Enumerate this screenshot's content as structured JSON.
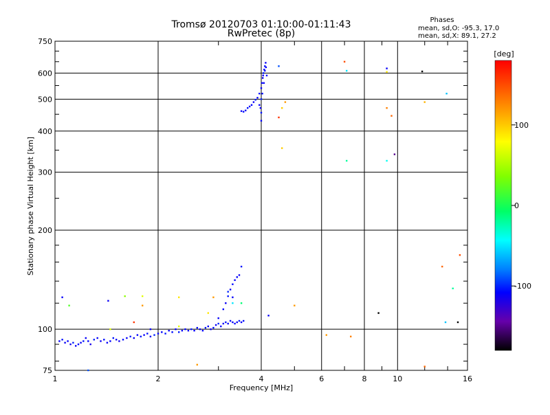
{
  "chart_data": {
    "type": "scatter",
    "title": "Tromsø 20120703 01:10:00-01:11:43",
    "subtitle": "RwPretec (8p)",
    "xlabel": "Frequency [MHz]",
    "ylabel": "Stationary phase Virtual Height [km]",
    "x_scale": "log",
    "y_scale": "log",
    "xlim": [
      1,
      16
    ],
    "ylim": [
      75,
      750
    ],
    "x_ticks": [
      1,
      2,
      4,
      6,
      8,
      10,
      16
    ],
    "x_tick_labels": [
      "1",
      "2",
      "4",
      "6",
      "8",
      "10",
      "16"
    ],
    "y_ticks": [
      75,
      100,
      200,
      300,
      400,
      500,
      600,
      750
    ],
    "y_tick_labels": [
      "75",
      "100",
      "200",
      "300",
      "400",
      "500",
      "600",
      "750"
    ],
    "grid": true,
    "phases_legend": {
      "heading": "Phases",
      "line_o": "mean, sd,O: -95.3, 17.0",
      "line_x": "mean, sd,X:  89.1, 27.2"
    },
    "colorbar": {
      "label": "[deg]",
      "min": -180,
      "max": 180,
      "tick_values": [
        100,
        0,
        -100
      ],
      "tick_labels": [
        "100",
        "0",
        "-100"
      ]
    },
    "series": [
      {
        "points": [
          [
            1.03,
            92,
            -110
          ],
          [
            1.05,
            93,
            -105
          ],
          [
            1.07,
            91,
            -112
          ],
          [
            1.09,
            92,
            -108
          ],
          [
            1.11,
            90,
            -115
          ],
          [
            1.13,
            91,
            -100
          ],
          [
            1.15,
            89,
            -110
          ],
          [
            1.17,
            90,
            -106
          ],
          [
            1.19,
            91,
            -112
          ],
          [
            1.21,
            92,
            -104
          ],
          [
            1.23,
            94,
            -110
          ],
          [
            1.25,
            92,
            -108
          ],
          [
            1.27,
            90,
            -116
          ],
          [
            1.3,
            93,
            -102
          ],
          [
            1.33,
            94,
            -110
          ],
          [
            1.36,
            92,
            -112
          ],
          [
            1.39,
            93,
            -105
          ],
          [
            1.42,
            91,
            -110
          ],
          [
            1.45,
            92,
            -108
          ],
          [
            1.48,
            94,
            -104
          ],
          [
            1.51,
            93,
            -110
          ],
          [
            1.54,
            92,
            -114
          ],
          [
            1.58,
            93,
            -106
          ],
          [
            1.62,
            94,
            -110
          ],
          [
            1.66,
            95,
            -102
          ],
          [
            1.7,
            94,
            -112
          ],
          [
            1.74,
            96,
            -108
          ],
          [
            1.78,
            95,
            -104
          ],
          [
            1.82,
            96,
            -110
          ],
          [
            1.86,
            97,
            -106
          ],
          [
            1.9,
            95,
            -112
          ],
          [
            1.95,
            96,
            -100
          ],
          [
            2.0,
            97,
            -110
          ],
          [
            2.05,
            98,
            -108
          ],
          [
            2.1,
            97,
            -104
          ],
          [
            2.15,
            99,
            -112
          ],
          [
            2.2,
            98,
            -106
          ],
          [
            2.25,
            100,
            -110
          ],
          [
            2.3,
            98,
            -102
          ],
          [
            2.35,
            99,
            -110
          ],
          [
            2.4,
            100,
            -108
          ],
          [
            2.45,
            99,
            -112
          ],
          [
            2.5,
            100,
            -104
          ],
          [
            2.55,
            99,
            -110
          ],
          [
            2.6,
            101,
            -106
          ],
          [
            2.65,
            100,
            -110
          ],
          [
            2.7,
            99,
            -108
          ],
          [
            2.75,
            101,
            -104
          ],
          [
            2.8,
            102,
            -110
          ],
          [
            2.85,
            100,
            -112
          ],
          [
            2.9,
            101,
            -106
          ],
          [
            2.95,
            103,
            -110
          ],
          [
            3.0,
            104,
            -100
          ],
          [
            3.05,
            102,
            -108
          ],
          [
            3.1,
            104,
            -112
          ],
          [
            3.15,
            105,
            -104
          ],
          [
            3.2,
            104,
            -110
          ],
          [
            3.25,
            106,
            -106
          ],
          [
            3.3,
            105,
            -110
          ],
          [
            3.35,
            104,
            -108
          ],
          [
            3.4,
            105,
            -112
          ],
          [
            3.45,
            106,
            -104
          ],
          [
            3.5,
            105,
            -110
          ],
          [
            3.55,
            106,
            -106
          ],
          [
            3.0,
            108,
            -110
          ],
          [
            3.1,
            115,
            -108
          ],
          [
            3.15,
            120,
            -112
          ],
          [
            3.2,
            126,
            -104
          ],
          [
            3.25,
            132,
            -110
          ],
          [
            3.3,
            137,
            -106
          ],
          [
            3.35,
            141,
            -110
          ],
          [
            3.4,
            144,
            -108
          ],
          [
            3.45,
            146,
            -112
          ],
          [
            3.5,
            155,
            -104
          ],
          [
            3.3,
            125,
            -110
          ],
          [
            3.2,
            130,
            -100
          ],
          [
            3.5,
            460,
            -110
          ],
          [
            3.55,
            458,
            -106
          ],
          [
            3.6,
            462,
            -112
          ],
          [
            3.65,
            470,
            -104
          ],
          [
            3.7,
            475,
            -110
          ],
          [
            3.75,
            480,
            -108
          ],
          [
            3.8,
            490,
            -112
          ],
          [
            3.85,
            498,
            -104
          ],
          [
            3.9,
            505,
            -110
          ],
          [
            3.95,
            520,
            -106
          ],
          [
            4.0,
            540,
            -110
          ],
          [
            4.02,
            560,
            -108
          ],
          [
            4.04,
            580,
            -112
          ],
          [
            4.06,
            600,
            -104
          ],
          [
            4.08,
            615,
            -110
          ],
          [
            4.1,
            630,
            -106
          ],
          [
            4.12,
            645,
            -110
          ],
          [
            4.0,
            500,
            -100
          ],
          [
            3.98,
            470,
            -112
          ],
          [
            4.03,
            520,
            -104
          ],
          [
            4.07,
            560,
            -110
          ],
          [
            4.0,
            430,
            -108
          ],
          [
            4.05,
            590,
            -112
          ],
          [
            4.1,
            610,
            -104
          ],
          [
            4.13,
            625,
            -110
          ],
          [
            4.15,
            590,
            -106
          ],
          [
            3.95,
            480,
            -110
          ],
          [
            4.0,
            455,
            -104
          ],
          [
            1.05,
            125,
            -110
          ],
          [
            1.1,
            118,
            20
          ],
          [
            1.25,
            75,
            -90
          ],
          [
            1.43,
            122,
            -112
          ],
          [
            1.45,
            100,
            70
          ],
          [
            1.6,
            126,
            40
          ],
          [
            1.7,
            105,
            160
          ],
          [
            1.8,
            118,
            120
          ],
          [
            1.8,
            126,
            70
          ],
          [
            1.9,
            100,
            -110
          ],
          [
            2.3,
            102,
            70
          ],
          [
            2.3,
            125,
            90
          ],
          [
            2.6,
            78,
            120
          ],
          [
            2.8,
            112,
            90
          ],
          [
            2.9,
            125,
            120
          ],
          [
            3.3,
            120,
            -50
          ],
          [
            3.5,
            120,
            -10
          ],
          [
            4.2,
            110,
            -110
          ],
          [
            4.5,
            630,
            -90
          ],
          [
            4.5,
            440,
            160
          ],
          [
            4.6,
            470,
            100
          ],
          [
            4.7,
            490,
            120
          ],
          [
            4.6,
            355,
            100
          ],
          [
            5.0,
            118,
            120
          ],
          [
            6.2,
            96,
            120
          ],
          [
            7.0,
            650,
            150
          ],
          [
            7.1,
            610,
            -50
          ],
          [
            7.1,
            325,
            -20
          ],
          [
            7.3,
            95,
            130
          ],
          [
            8.8,
            112,
            -180
          ],
          [
            9.3,
            620,
            -110
          ],
          [
            9.3,
            605,
            90
          ],
          [
            9.3,
            470,
            130
          ],
          [
            9.3,
            325,
            -40
          ],
          [
            9.6,
            445,
            140
          ],
          [
            9.8,
            340,
            -150
          ],
          [
            11.8,
            607,
            -180
          ],
          [
            12.0,
            490,
            110
          ],
          [
            12.0,
            77,
            140
          ],
          [
            13.5,
            155,
            140
          ],
          [
            13.8,
            105,
            -60
          ],
          [
            13.9,
            520,
            -60
          ],
          [
            14.5,
            133,
            -20
          ],
          [
            15.0,
            105,
            -180
          ],
          [
            15.2,
            168,
            150
          ]
        ]
      }
    ]
  }
}
